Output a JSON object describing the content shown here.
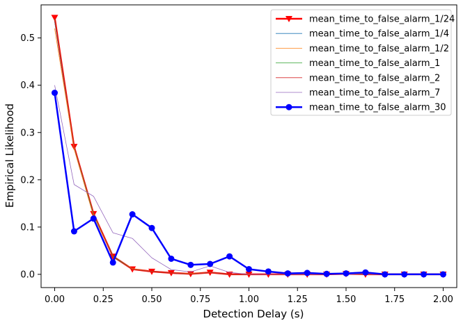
{
  "chart_data": {
    "type": "line",
    "title": "",
    "xlabel": "Detection Delay (s)",
    "ylabel": "Empirical Likelihood",
    "xlim": [
      -0.07,
      2.07
    ],
    "ylim": [
      -0.028,
      0.57
    ],
    "xticks": [
      0.0,
      0.25,
      0.5,
      0.75,
      1.0,
      1.25,
      1.5,
      1.75,
      2.0
    ],
    "xtick_labels": [
      "0.00",
      "0.25",
      "0.50",
      "0.75",
      "1.00",
      "1.25",
      "1.50",
      "1.75",
      "2.00"
    ],
    "yticks": [
      0.0,
      0.1,
      0.2,
      0.3,
      0.4,
      0.5
    ],
    "ytick_labels": [
      "0.0",
      "0.1",
      "0.2",
      "0.3",
      "0.4",
      "0.5"
    ],
    "grid": false,
    "legend_position": "top-right",
    "x": [
      0.0,
      0.1,
      0.2,
      0.3,
      0.4,
      0.5,
      0.6,
      0.7,
      0.8,
      0.9,
      1.0,
      1.1,
      1.2,
      1.3,
      1.4,
      1.5,
      1.6,
      1.7,
      1.8,
      1.9,
      2.0
    ],
    "series": [
      {
        "name": "mean_time_to_false_alarm_1/24",
        "color": "#ff0000",
        "marker": "triangle-down",
        "width": 2.5,
        "values": [
          0.543,
          0.27,
          0.128,
          0.038,
          0.011,
          0.006,
          0.003,
          0.001,
          0.004,
          0.0,
          0.0,
          0.0,
          0.0,
          0.0,
          0.0,
          0.001,
          0.0,
          0.0,
          0.0,
          0.0,
          0.0
        ]
      },
      {
        "name": "mean_time_to_false_alarm_1/4",
        "color": "#1f77b4",
        "marker": "none",
        "width": 0.8,
        "values": [
          0.535,
          0.268,
          0.126,
          0.038,
          0.011,
          0.006,
          0.003,
          0.001,
          0.004,
          0.0,
          0.0,
          0.0,
          0.0,
          0.0,
          0.0,
          0.001,
          0.0,
          0.0,
          0.0,
          0.0,
          0.0
        ]
      },
      {
        "name": "mean_time_to_false_alarm_1/2",
        "color": "#ff7f0e",
        "marker": "none",
        "width": 0.8,
        "values": [
          0.52,
          0.266,
          0.124,
          0.037,
          0.012,
          0.006,
          0.003,
          0.002,
          0.004,
          0.0,
          0.0,
          0.0,
          0.0,
          0.0,
          0.0,
          0.001,
          0.0,
          0.0,
          0.0,
          0.0,
          0.0
        ]
      },
      {
        "name": "mean_time_to_false_alarm_1",
        "color": "#2ca02c",
        "marker": "none",
        "width": 0.8,
        "values": [
          0.54,
          0.27,
          0.127,
          0.038,
          0.011,
          0.006,
          0.003,
          0.001,
          0.004,
          0.0,
          0.0,
          0.0,
          0.0,
          0.0,
          0.0,
          0.001,
          0.0,
          0.0,
          0.0,
          0.0,
          0.0
        ]
      },
      {
        "name": "mean_time_to_false_alarm_2",
        "color": "#d62728",
        "marker": "none",
        "width": 0.8,
        "values": [
          0.538,
          0.271,
          0.13,
          0.036,
          0.011,
          0.006,
          0.003,
          0.001,
          0.004,
          0.0,
          0.0,
          0.0,
          0.0,
          0.0,
          0.0,
          0.001,
          0.0,
          0.0,
          0.0,
          0.0,
          0.0
        ]
      },
      {
        "name": "mean_time_to_false_alarm_7",
        "color": "#9467bd",
        "marker": "none",
        "width": 0.8,
        "values": [
          0.4,
          0.19,
          0.165,
          0.088,
          0.076,
          0.035,
          0.01,
          0.005,
          0.018,
          0.004,
          0.0,
          0.0,
          0.0,
          0.0,
          0.0,
          0.0,
          0.0,
          0.0,
          0.0,
          0.0,
          0.0
        ]
      },
      {
        "name": "mean_time_to_false_alarm_30",
        "color": "#0000ff",
        "marker": "circle",
        "width": 2.5,
        "values": [
          0.384,
          0.091,
          0.118,
          0.025,
          0.127,
          0.098,
          0.033,
          0.02,
          0.022,
          0.038,
          0.011,
          0.006,
          0.002,
          0.003,
          0.001,
          0.002,
          0.004,
          0.0,
          0.0,
          0.0,
          0.0
        ]
      }
    ]
  }
}
